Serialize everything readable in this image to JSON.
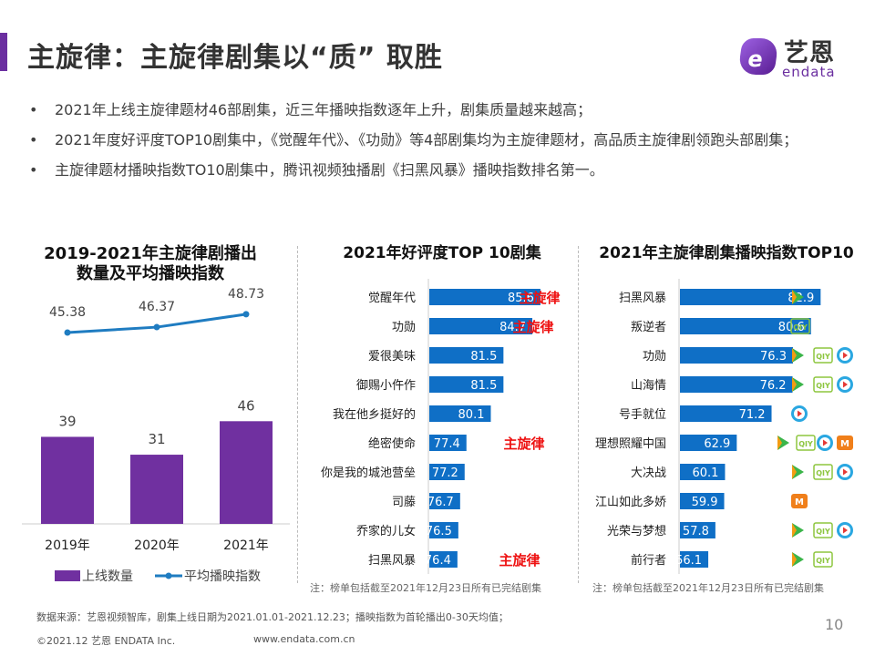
{
  "header": {
    "title": "主旋律：主旋律剧集以“质” 取胜",
    "logo_cn": "艺恩",
    "logo_en": "endata",
    "accent_color": "#6b2fa0"
  },
  "bullets": [
    "2021年上线主旋律题材46部剧集，近三年播映指数逐年上升，剧集质量越来越高；",
    "2021年度好评度TOP10剧集中，《觉醒年代》、《功勋》等4部剧集均为主旋律题材，高品质主旋律剧领跑头部剧集；",
    "主旋律题材播映指数TO10剧集中，腾讯视频独播剧《扫黑风暴》播映指数排名第一。"
  ],
  "bullet_symbol": "•",
  "chart_data": [
    {
      "type": "bar",
      "title": "2019-2021年主旋律剧播出数量及平均播映指数",
      "title_lines": [
        "2019-2021年主旋律剧播出",
        "数量及平均播映指数"
      ],
      "categories": [
        "2019年",
        "2020年",
        "2021年"
      ],
      "series": [
        {
          "name": "上线数量",
          "type": "bar",
          "values": [
            39,
            31,
            46
          ],
          "color": "#7030a0"
        },
        {
          "name": "平均播映指数",
          "type": "line",
          "values": [
            45.38,
            46.37,
            48.73
          ],
          "labels": [
            "45.38",
            "46.37",
            "48.73"
          ],
          "color": "#1f7cc1"
        }
      ],
      "ylim": [
        0,
        60
      ],
      "legend": "bottom"
    },
    {
      "type": "bar",
      "orientation": "horizontal",
      "title": "2021年好评度TOP 10剧集",
      "categories": [
        "觉醒年代",
        "功勋",
        "爱很美味",
        "御赐小仵作",
        "我在他乡挺好的",
        "绝密使命",
        "你是我的城池营垒",
        "司藤",
        "乔家的儿女",
        "扫黑风暴"
      ],
      "values": [
        85.6,
        84.7,
        81.5,
        81.5,
        80.1,
        77.4,
        77.2,
        76.7,
        76.5,
        76.4
      ],
      "labels": [
        "85.6",
        "84.7",
        "81.5",
        "81.5",
        "80.1",
        "77.4",
        "77.2",
        "76.7",
        "76.5",
        "76.4"
      ],
      "tags": [
        "主旋律",
        "主旋律",
        "",
        "",
        "",
        "主旋律",
        "",
        "",
        "",
        "主旋律"
      ],
      "color": "#0f6fc6",
      "tag_color": "#e11111",
      "note": "注：榜单包括截至2021年12月23日所有已完结剧集"
    },
    {
      "type": "bar",
      "orientation": "horizontal",
      "title": "2021年主旋律剧集播映指数TOP10",
      "categories": [
        "扫黑风暴",
        "叛逆者",
        "功勋",
        "山海情",
        "号手就位",
        "理想照耀中国",
        "大决战",
        "江山如此多娇",
        "光荣与梦想",
        "前行者"
      ],
      "values": [
        82.9,
        80.6,
        76.3,
        76.2,
        71.2,
        62.9,
        60.1,
        59.9,
        57.8,
        56.1
      ],
      "labels": [
        "82.9",
        "80.6",
        "76.3",
        "76.2",
        "71.2",
        "62.9",
        "60.1",
        "59.9",
        "57.8",
        "56.1"
      ],
      "platforms": [
        [
          "tencent"
        ],
        [
          "iqiyi"
        ],
        [
          "tencent",
          "iqiyi",
          "youku"
        ],
        [
          "tencent",
          "iqiyi",
          "youku"
        ],
        [
          "youku"
        ],
        [
          "tencent",
          "iqiyi",
          "youku",
          "mango"
        ],
        [
          "tencent",
          "iqiyi",
          "youku"
        ],
        [
          "mango"
        ],
        [
          "tencent",
          "iqiyi",
          "youku"
        ],
        [
          "tencent",
          "iqiyi"
        ]
      ],
      "color": "#0f6fc6",
      "note": "注：榜单包括截至2021年12月23日所有已完结剧集"
    }
  ],
  "platform_icons": {
    "tencent": {
      "name": "tencent-video-icon",
      "color": "#3bb54a",
      "color2": "#f39c12"
    },
    "iqiyi": {
      "name": "iqiyi-icon",
      "text": "iQIYI",
      "color": "#8dc63f"
    },
    "youku": {
      "name": "youku-icon",
      "color": "#2aa7e1",
      "color2": "#e53935"
    },
    "mango": {
      "name": "mango-tv-icon",
      "text": "M",
      "color": "#f07f1a"
    }
  },
  "footer": {
    "source": "数据来源：艺恩视频智库，剧集上线日期为2021.01.01-2021.12.23；播映指数为首轮播出0-30天均值；",
    "copyright": "©2021.12 艺恩 ENDATA Inc.",
    "url": "www.endata.com.cn",
    "page_number": "10"
  }
}
